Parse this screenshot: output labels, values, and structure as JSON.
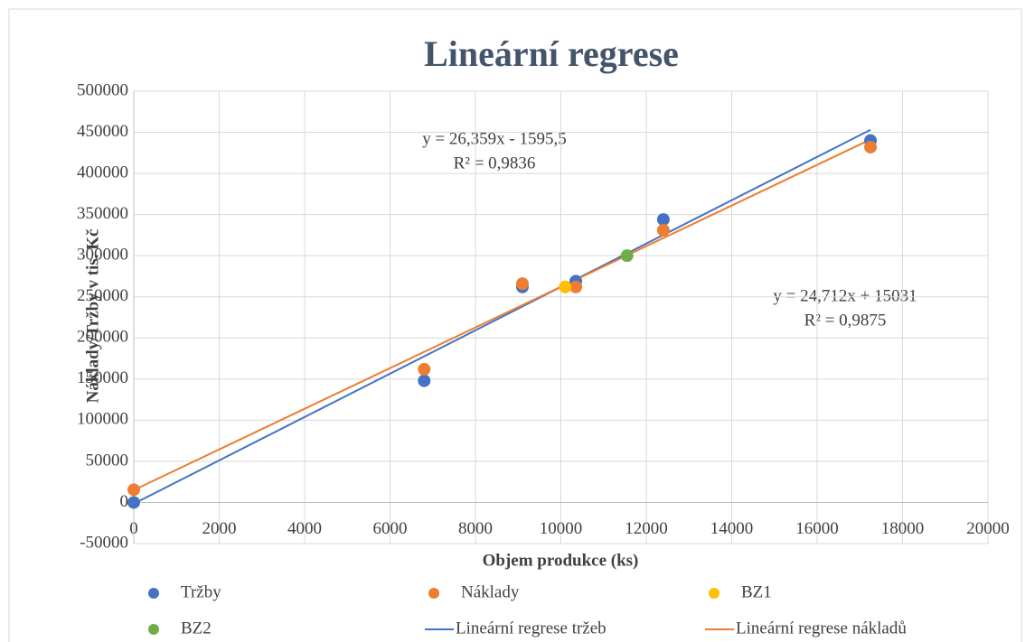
{
  "chart_data": {
    "type": "scatter",
    "title": "Lineární regrese",
    "xlabel": "Objem produkce (ks)",
    "ylabel": "Náklady/Tržby v tis. Kč",
    "xlim": [
      0,
      20000
    ],
    "xticks": [
      0,
      2000,
      4000,
      6000,
      8000,
      10000,
      12000,
      14000,
      16000,
      18000,
      20000
    ],
    "ylim": [
      -50000,
      500000
    ],
    "yticks": [
      -50000,
      0,
      50000,
      100000,
      150000,
      200000,
      250000,
      300000,
      350000,
      400000,
      450000,
      500000
    ],
    "grid": true,
    "legend": "bottom",
    "series": [
      {
        "name": "Tržby",
        "color": "#4472c4",
        "mode": "markers",
        "x": [
          0,
          6800,
          9100,
          10350,
          12400,
          17250
        ],
        "values": [
          0,
          148000,
          262000,
          269000,
          344000,
          440000
        ]
      },
      {
        "name": "Náklady",
        "color": "#ed7d31",
        "mode": "markers",
        "x": [
          0,
          6800,
          9100,
          10350,
          12400,
          17250
        ],
        "values": [
          15500,
          162000,
          266000,
          262000,
          331000,
          432000
        ]
      },
      {
        "name": "BZ1",
        "color": "#ffc000",
        "mode": "markers",
        "x": [
          10100
        ],
        "values": [
          262000
        ]
      },
      {
        "name": "BZ2",
        "color": "#70ad47",
        "mode": "markers",
        "x": [
          11550
        ],
        "values": [
          300000
        ]
      },
      {
        "name": "Lineární regrese tržeb",
        "color": "#4472c4",
        "mode": "line",
        "x": [
          0,
          17250
        ],
        "values": [
          -1596,
          453097
        ]
      },
      {
        "name": "Lineární regrese nákladů",
        "color": "#ed7d31",
        "mode": "line",
        "x": [
          0,
          17250
        ],
        "values": [
          15031,
          441313
        ]
      }
    ],
    "annotations": [
      [
        "y = 26,359x - 1595,5",
        "R² = 0,9836"
      ],
      [
        "y = 24,712x + 15031",
        "R² = 0,9875"
      ]
    ]
  }
}
